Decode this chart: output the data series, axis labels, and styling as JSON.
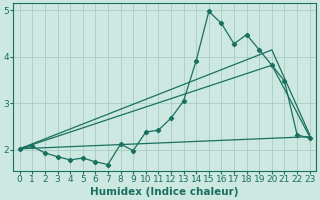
{
  "xlabel": "Humidex (Indice chaleur)",
  "bg_color": "#cce8e0",
  "line_color": "#1a7060",
  "xlim": [
    -0.5,
    23.5
  ],
  "ylim": [
    1.55,
    5.15
  ],
  "yticks": [
    2,
    3,
    4,
    5
  ],
  "xticks": [
    0,
    1,
    2,
    3,
    4,
    5,
    6,
    7,
    8,
    9,
    10,
    11,
    12,
    13,
    14,
    15,
    16,
    17,
    18,
    19,
    20,
    21,
    22,
    23
  ],
  "series1_x": [
    0,
    1,
    2,
    3,
    4,
    5,
    6,
    7,
    8,
    9,
    10,
    11,
    12,
    13,
    14,
    15,
    16,
    17,
    18,
    19,
    20,
    21,
    22,
    23
  ],
  "series1_y": [
    2.02,
    2.07,
    1.93,
    1.85,
    1.78,
    1.82,
    1.74,
    1.68,
    2.12,
    1.98,
    2.38,
    2.42,
    2.68,
    3.05,
    3.92,
    4.98,
    4.72,
    4.28,
    4.48,
    4.15,
    3.82,
    3.48,
    2.32,
    2.25
  ],
  "series2_x": [
    0,
    23
  ],
  "series2_y": [
    2.02,
    2.28
  ],
  "series3_x": [
    0,
    20,
    23
  ],
  "series3_y": [
    2.02,
    3.82,
    2.28
  ],
  "series4_x": [
    0,
    20,
    23
  ],
  "series4_y": [
    2.02,
    4.15,
    2.32
  ],
  "grid_color": "#aaccc4",
  "tick_fontsize": 6.5,
  "xlabel_fontsize": 7.5
}
